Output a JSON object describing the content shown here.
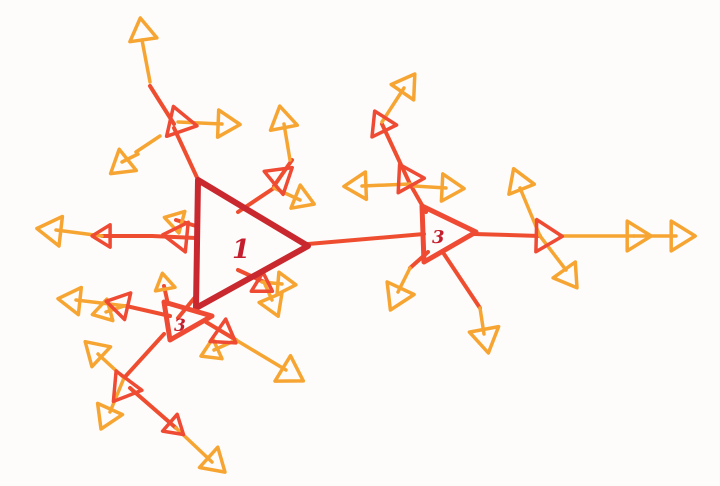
{
  "diagram": {
    "kind": "hand-drawn triangle tree",
    "colors": {
      "paper": "#fdfcfb",
      "root": "#c8282e",
      "edge": "#ef4d2f",
      "inner": "#ef4a33",
      "leaf": "#f7a532",
      "label": "#c41e2e"
    },
    "nodes": [
      {
        "id": "root",
        "label": "1",
        "level": "root"
      },
      {
        "id": "hub-right",
        "label": "3",
        "level": "hub"
      },
      {
        "id": "hub-lower-left",
        "label": "3",
        "level": "hub"
      }
    ]
  }
}
